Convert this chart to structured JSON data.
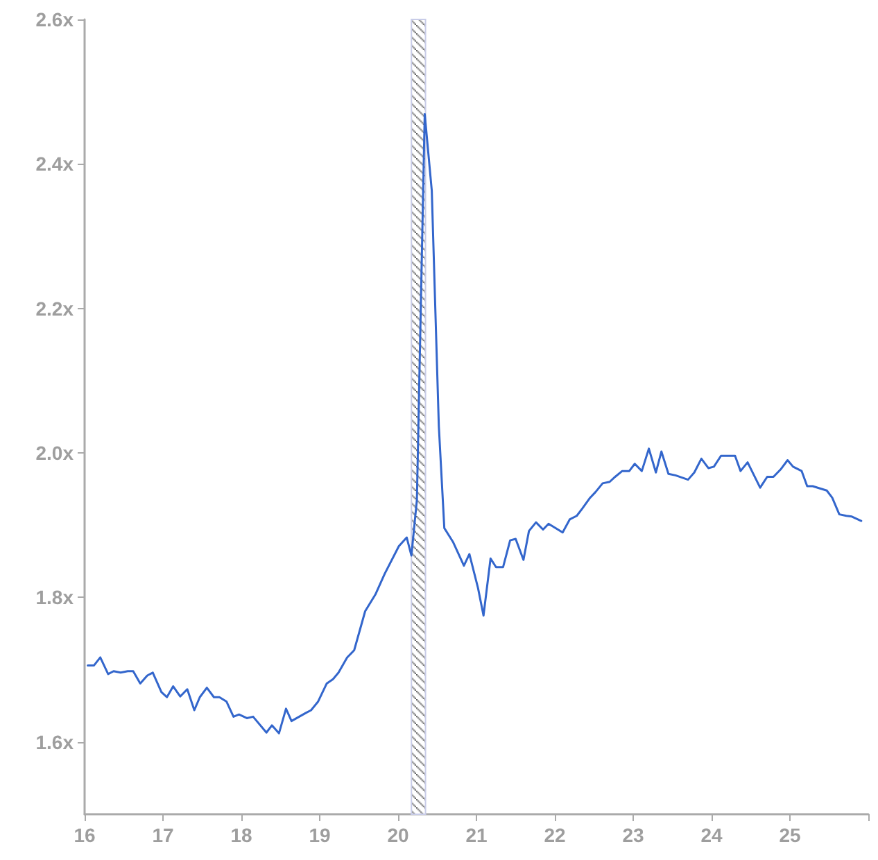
{
  "chart_data": {
    "type": "line",
    "x": [
      16.04,
      16.12,
      16.2,
      16.3,
      16.37,
      16.46,
      16.55,
      16.62,
      16.71,
      16.8,
      16.87,
      16.98,
      17.05,
      17.13,
      17.22,
      17.31,
      17.4,
      17.47,
      17.56,
      17.65,
      17.72,
      17.81,
      17.9,
      17.97,
      18.07,
      18.15,
      18.32,
      18.39,
      18.48,
      18.57,
      18.64,
      18.82,
      18.89,
      18.98,
      19.09,
      19.17,
      19.24,
      19.35,
      19.44,
      19.58,
      19.71,
      19.83,
      20.01,
      20.11,
      20.17,
      20.24,
      20.34,
      20.43,
      20.52,
      20.59,
      20.7,
      20.84,
      20.91,
      21.02,
      21.09,
      21.18,
      21.25,
      21.34,
      21.43,
      21.5,
      21.6,
      21.67,
      21.76,
      21.85,
      21.92,
      22.1,
      22.19,
      22.28,
      22.35,
      22.45,
      22.52,
      22.61,
      22.7,
      22.77,
      22.86,
      22.95,
      23.02,
      23.11,
      23.2,
      23.29,
      23.36,
      23.45,
      23.54,
      23.7,
      23.78,
      23.87,
      23.96,
      24.03,
      24.12,
      24.3,
      24.37,
      24.46,
      24.62,
      24.71,
      24.79,
      24.88,
      24.97,
      25.04,
      25.15,
      25.22,
      25.29,
      25.47,
      25.54,
      25.63,
      25.72,
      25.79,
      25.91
    ],
    "series": [
      {
        "color": "#3366cc",
        "values": [
          1.706,
          1.706,
          1.717,
          1.694,
          1.698,
          1.696,
          1.698,
          1.698,
          1.681,
          1.692,
          1.696,
          1.669,
          1.662,
          1.677,
          1.663,
          1.673,
          1.644,
          1.662,
          1.675,
          1.662,
          1.662,
          1.656,
          1.635,
          1.638,
          1.633,
          1.635,
          1.613,
          1.623,
          1.612,
          1.646,
          1.629,
          1.64,
          1.644,
          1.656,
          1.681,
          1.687,
          1.696,
          1.717,
          1.727,
          1.781,
          1.804,
          1.833,
          1.871,
          1.883,
          1.858,
          1.935,
          2.469,
          2.363,
          2.037,
          1.896,
          1.877,
          1.844,
          1.86,
          1.813,
          1.775,
          1.854,
          1.842,
          1.842,
          1.879,
          1.881,
          1.852,
          1.892,
          1.904,
          1.894,
          1.902,
          1.89,
          1.908,
          1.913,
          1.923,
          1.938,
          1.946,
          1.958,
          1.96,
          1.967,
          1.975,
          1.975,
          1.985,
          1.975,
          2.006,
          1.973,
          2.002,
          1.971,
          1.969,
          1.963,
          1.973,
          1.992,
          1.979,
          1.981,
          1.996,
          1.996,
          1.975,
          1.987,
          1.952,
          1.967,
          1.967,
          1.977,
          1.99,
          1.981,
          1.975,
          1.954,
          1.954,
          1.948,
          1.938,
          1.915,
          1.913,
          1.912,
          1.906
        ]
      }
    ],
    "xlim": [
      16,
      26
    ],
    "xticks": [
      16,
      17,
      18,
      19,
      20,
      21,
      22,
      23,
      24,
      25,
      {
        "value": 26,
        "label": null
      }
    ],
    "ylim": [
      1.5,
      2.6
    ],
    "yticks": [
      {
        "value": 1.6,
        "label": "1.6x"
      },
      {
        "value": 1.8,
        "label": "1.8x"
      },
      {
        "value": 2.0,
        "label": "2.0x"
      },
      {
        "value": 2.2,
        "label": "2.2x"
      },
      {
        "value": 2.4,
        "label": "2.4x"
      },
      {
        "value": 2.6,
        "label": "2.6x"
      }
    ],
    "bands": [
      {
        "axis": "x",
        "from": 20.17,
        "to": 20.35
      }
    ],
    "grid": false,
    "marker": "none",
    "line_style": "solid"
  }
}
